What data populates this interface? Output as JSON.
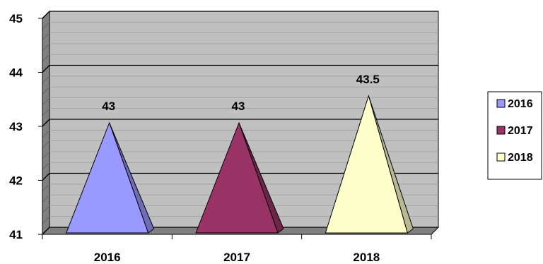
{
  "chart_data": {
    "type": "bar",
    "shape": "3d-pyramid",
    "categories": [
      "2016",
      "2017",
      "2018"
    ],
    "values": [
      43,
      43,
      43.5
    ],
    "data_labels": [
      "43",
      "43",
      "43.5"
    ],
    "ylim": [
      41,
      45
    ],
    "y_ticks": [
      "41",
      "42",
      "43",
      "44",
      "45"
    ],
    "grid": true,
    "legend": {
      "position": "right",
      "entries": [
        "2016",
        "2017",
        "2018"
      ]
    },
    "colors": {
      "2016": "#9999ff",
      "2017": "#993366",
      "2018": "#ffffcc",
      "plot_background": "#c0c0c0",
      "side_wall": "#808080"
    }
  }
}
